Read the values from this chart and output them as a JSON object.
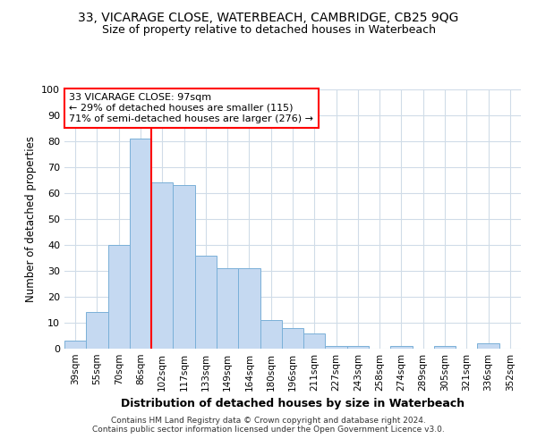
{
  "title_line1": "33, VICARAGE CLOSE, WATERBEACH, CAMBRIDGE, CB25 9QG",
  "title_line2": "Size of property relative to detached houses in Waterbeach",
  "xlabel": "Distribution of detached houses by size in Waterbeach",
  "ylabel": "Number of detached properties",
  "categories": [
    "39sqm",
    "55sqm",
    "70sqm",
    "86sqm",
    "102sqm",
    "117sqm",
    "133sqm",
    "149sqm",
    "164sqm",
    "180sqm",
    "196sqm",
    "211sqm",
    "227sqm",
    "243sqm",
    "258sqm",
    "274sqm",
    "289sqm",
    "305sqm",
    "321sqm",
    "336sqm",
    "352sqm"
  ],
  "values": [
    3,
    14,
    40,
    81,
    64,
    63,
    36,
    31,
    31,
    11,
    8,
    6,
    1,
    1,
    0,
    1,
    0,
    1,
    0,
    2,
    0
  ],
  "bar_color": "#c5d9f1",
  "bar_edge_color": "#7ab0d8",
  "vline_color": "red",
  "annotation_text": "33 VICARAGE CLOSE: 97sqm\n← 29% of detached houses are smaller (115)\n71% of semi-detached houses are larger (276) →",
  "annotation_box_color": "white",
  "annotation_box_edge_color": "red",
  "ylim": [
    0,
    100
  ],
  "yticks": [
    0,
    10,
    20,
    30,
    40,
    50,
    60,
    70,
    80,
    90,
    100
  ],
  "footer_line1": "Contains HM Land Registry data © Crown copyright and database right 2024.",
  "footer_line2": "Contains public sector information licensed under the Open Government Licence v3.0.",
  "background_color": "#ffffff",
  "grid_color": "#d0dce8"
}
